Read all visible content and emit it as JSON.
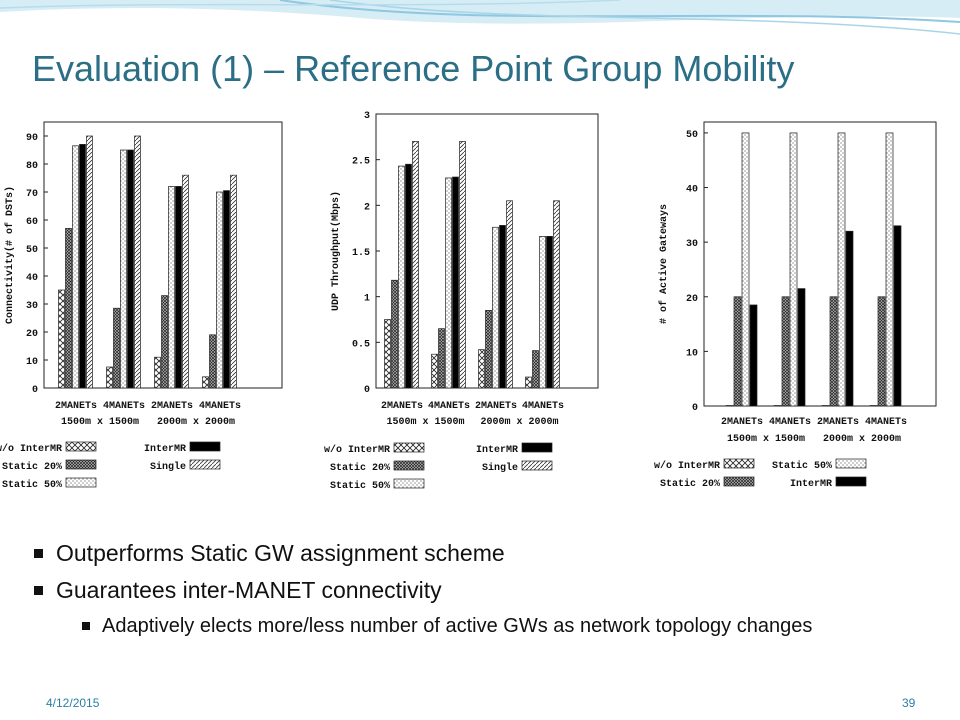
{
  "slide": {
    "title": "Evaluation (1) – Reference Point Group Mobility",
    "bullets": [
      "Outperforms Static GW assignment scheme",
      "Guarantees inter-MANET connectivity"
    ],
    "sub_bullet": "Adaptively elects more/less number of active GWs as network topology changes",
    "footer_date": "4/12/2015",
    "page_number": "39"
  },
  "colors": {
    "title": "#2b6e86",
    "wave": "#8fc7e0",
    "footer": "#2b7fa6"
  },
  "chart_data": [
    {
      "type": "bar",
      "ylabel": "Connectivity(# of DSTs)",
      "ylim": [
        0,
        95
      ],
      "yticks": [
        0,
        10,
        20,
        30,
        40,
        50,
        60,
        70,
        80,
        90
      ],
      "categories": [
        "2MANETs",
        "4MANETs",
        "2MANETs",
        "4MANETs"
      ],
      "group_labels": [
        "1500m x 1500m",
        "2000m x 2000m"
      ],
      "series": [
        {
          "name": "w/o InterMR",
          "pattern": "cross",
          "values": [
            35,
            7.5,
            11,
            4
          ]
        },
        {
          "name": "Static 20%",
          "pattern": "dense",
          "values": [
            57,
            28.5,
            33,
            19
          ]
        },
        {
          "name": "Static 50%",
          "pattern": "dots",
          "values": [
            86.5,
            85,
            72,
            70
          ]
        },
        {
          "name": "InterMR",
          "pattern": "solid",
          "values": [
            87,
            85,
            72,
            70.5
          ]
        },
        {
          "name": "Single",
          "pattern": "diag",
          "values": [
            90,
            90,
            76,
            76
          ]
        }
      ],
      "legend": [
        [
          "w/o InterMR",
          "InterMR"
        ],
        [
          "Static 20%",
          "Single"
        ],
        [
          "Static 50%"
        ]
      ]
    },
    {
      "type": "bar",
      "ylabel": "UDP Throughput(Mbps)",
      "ylim": [
        0,
        3
      ],
      "yticks": [
        0,
        0.5,
        1,
        1.5,
        2,
        2.5,
        3
      ],
      "categories": [
        "2MANETs",
        "4MANETs",
        "2MANETs",
        "4MANETs"
      ],
      "group_labels": [
        "1500m x 1500m",
        "2000m x 2000m"
      ],
      "series": [
        {
          "name": "w/o InterMR",
          "pattern": "cross",
          "values": [
            0.75,
            0.37,
            0.42,
            0.12
          ]
        },
        {
          "name": "Static 20%",
          "pattern": "dense",
          "values": [
            1.18,
            0.65,
            0.85,
            0.41
          ]
        },
        {
          "name": "Static 50%",
          "pattern": "dots",
          "values": [
            2.43,
            2.3,
            1.76,
            1.66
          ]
        },
        {
          "name": "InterMR",
          "pattern": "solid",
          "values": [
            2.45,
            2.31,
            1.78,
            1.66
          ]
        },
        {
          "name": "Single",
          "pattern": "diag",
          "values": [
            2.7,
            2.7,
            2.05,
            2.05
          ]
        }
      ],
      "legend": [
        [
          "w/o InterMR",
          "InterMR"
        ],
        [
          "Static 20%",
          "Single"
        ],
        [
          "Static 50%"
        ]
      ]
    },
    {
      "type": "bar",
      "ylabel": "# of Active Gateways",
      "ylim": [
        0,
        52
      ],
      "yticks": [
        0,
        10,
        20,
        30,
        40,
        50
      ],
      "categories": [
        "2MANETs",
        "4MANETs",
        "2MANETs",
        "4MANETs"
      ],
      "group_labels": [
        "1500m x 1500m",
        "2000m x 2000m"
      ],
      "series": [
        {
          "name": "w/o InterMR",
          "pattern": "cross",
          "values": [
            0,
            0,
            0,
            0
          ]
        },
        {
          "name": "Static 20%",
          "pattern": "dense",
          "values": [
            20,
            20,
            20,
            20
          ]
        },
        {
          "name": "Static 50%",
          "pattern": "dots",
          "values": [
            50,
            50,
            50,
            50
          ]
        },
        {
          "name": "InterMR",
          "pattern": "solid",
          "values": [
            18.5,
            21.5,
            32,
            33
          ]
        }
      ],
      "legend": [
        [
          "w/o InterMR",
          "Static 50%"
        ],
        [
          "Static 20%",
          "InterMR"
        ]
      ]
    }
  ]
}
